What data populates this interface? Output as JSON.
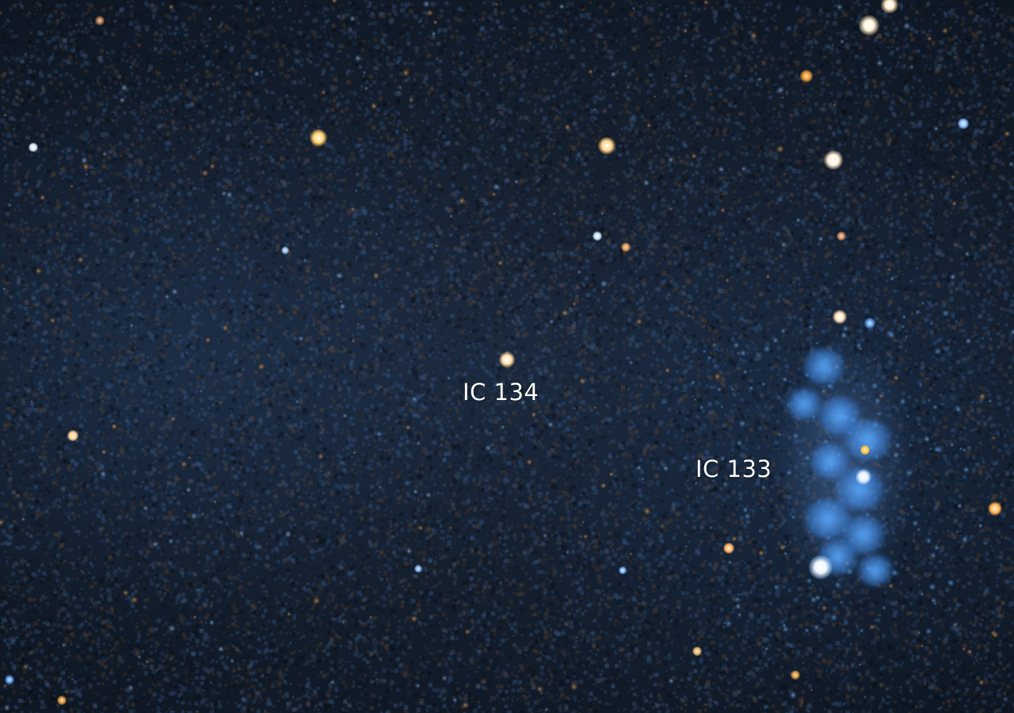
{
  "labels": {
    "ic134": "IC 134",
    "ic133": "IC 133"
  },
  "colors": {
    "sky_background": "#121c2a",
    "label_text": "#ffffff",
    "nebula_blue": "#4aa0ff",
    "star_warm": "#ffd89a",
    "star_cool": "#bfe0ff"
  }
}
